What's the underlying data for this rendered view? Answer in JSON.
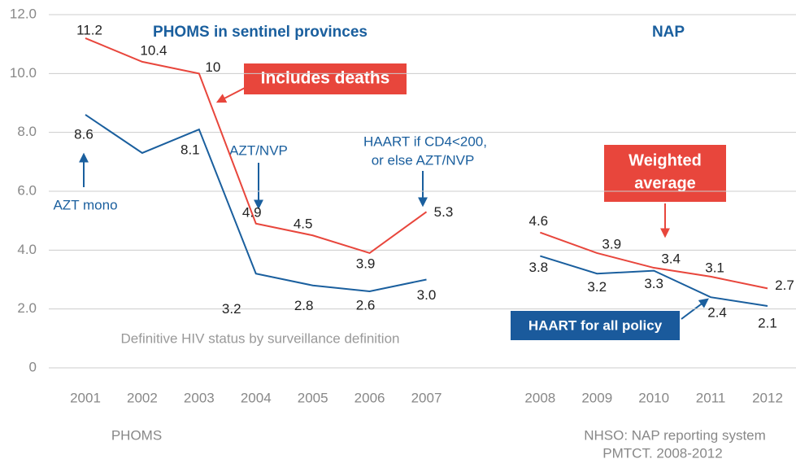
{
  "chart_data": {
    "type": "line",
    "categories": [
      "2001",
      "2002",
      "2003",
      "2004",
      "2005",
      "2006",
      "2007",
      null,
      "2008",
      "2009",
      "2010",
      "2011",
      "2012"
    ],
    "series": [
      {
        "name": "Includes deaths",
        "color": "#e8463c",
        "values": [
          11.2,
          10.4,
          10,
          4.9,
          4.5,
          3.9,
          5.3,
          null,
          4.6,
          3.9,
          3.4,
          3.1,
          2.7
        ]
      },
      {
        "name": "Definitive HIV status by surveillance definition",
        "color": "#1a5f9e",
        "values": [
          8.6,
          7.3,
          8.1,
          3.2,
          2.8,
          2.6,
          3.0,
          null,
          3.8,
          3.2,
          3.3,
          2.4,
          2.1
        ],
        "value_labels": [
          "8.6",
          null,
          "8.1",
          "3.2",
          "2.8",
          "2.6",
          "3.0",
          null,
          "3.8",
          "3.2",
          "3.3",
          "2.4",
          "2.1"
        ]
      }
    ],
    "ylim": [
      0,
      12
    ],
    "yticks": [
      0,
      {
        "value": 2,
        "label": "2.0"
      },
      {
        "value": 4,
        "label": "4.0"
      },
      {
        "value": 6,
        "label": "6.0"
      },
      {
        "value": 8,
        "label": "8.0"
      },
      {
        "value": 10,
        "label": "10.0"
      },
      {
        "value": 12,
        "label": "12.0"
      }
    ],
    "grid": true,
    "annotations": [
      "PHOMS in sentinel provinces",
      "NAP",
      "AZT/NVP",
      "AZT mono",
      "HAART if CD4<200,",
      "or else AZT/NVP",
      "Weighted",
      "average",
      "HAART for all policy",
      "PHOMS",
      "NHSO: NAP reporting system",
      "PMTCT. 2008-2012"
    ]
  }
}
